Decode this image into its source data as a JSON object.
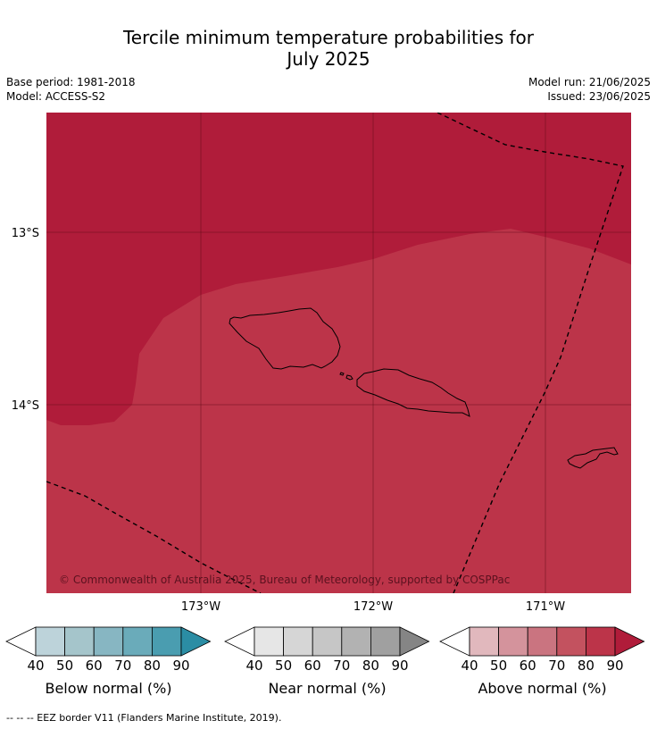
{
  "title_line1": "Tercile minimum temperature probabilities for",
  "title_line2": "July 2025",
  "base_period": "Base period: 1981-2018",
  "model": "Model: ACCESS-S2",
  "model_run": "Model run: 21/06/2025",
  "issued": "Issued: 23/06/2025",
  "map": {
    "lon_labels": [
      "173°W",
      "172°W",
      "171°W"
    ],
    "lat_labels": [
      "13°S",
      "14°S"
    ],
    "copyright": "© Commonwealth of Australia 2025, Bureau of Meteorology, supported by COSPPac",
    "regions": [
      {
        "category": "above",
        "probability_class": "80-90",
        "color": "#b01c3a"
      },
      {
        "category": "above",
        "probability_class": "70-80",
        "color": "#bc3449"
      }
    ]
  },
  "colorbars": [
    {
      "title": "Below normal (%)",
      "ticks": [
        "40",
        "50",
        "60",
        "70",
        "80",
        "90"
      ],
      "colors": [
        "#ffffff",
        "#bdd3da",
        "#a5c5cb",
        "#87b6c2",
        "#6aabba",
        "#4a9db0",
        "#2b8da4"
      ]
    },
    {
      "title": "Near normal (%)",
      "ticks": [
        "40",
        "50",
        "60",
        "70",
        "80",
        "90"
      ],
      "colors": [
        "#ffffff",
        "#e6e6e6",
        "#d6d6d6",
        "#c6c6c6",
        "#b2b2b2",
        "#a0a0a0",
        "#858585"
      ]
    },
    {
      "title": "Above normal (%)",
      "ticks": [
        "40",
        "50",
        "60",
        "70",
        "80",
        "90"
      ],
      "colors": [
        "#ffffff",
        "#e1b8bd",
        "#d4939c",
        "#ca7480",
        "#c3525f",
        "#bc3449",
        "#b01c3a"
      ]
    }
  ],
  "footer": "--  --  -- EEZ border V11 (Flanders Marine Institute, 2019)."
}
